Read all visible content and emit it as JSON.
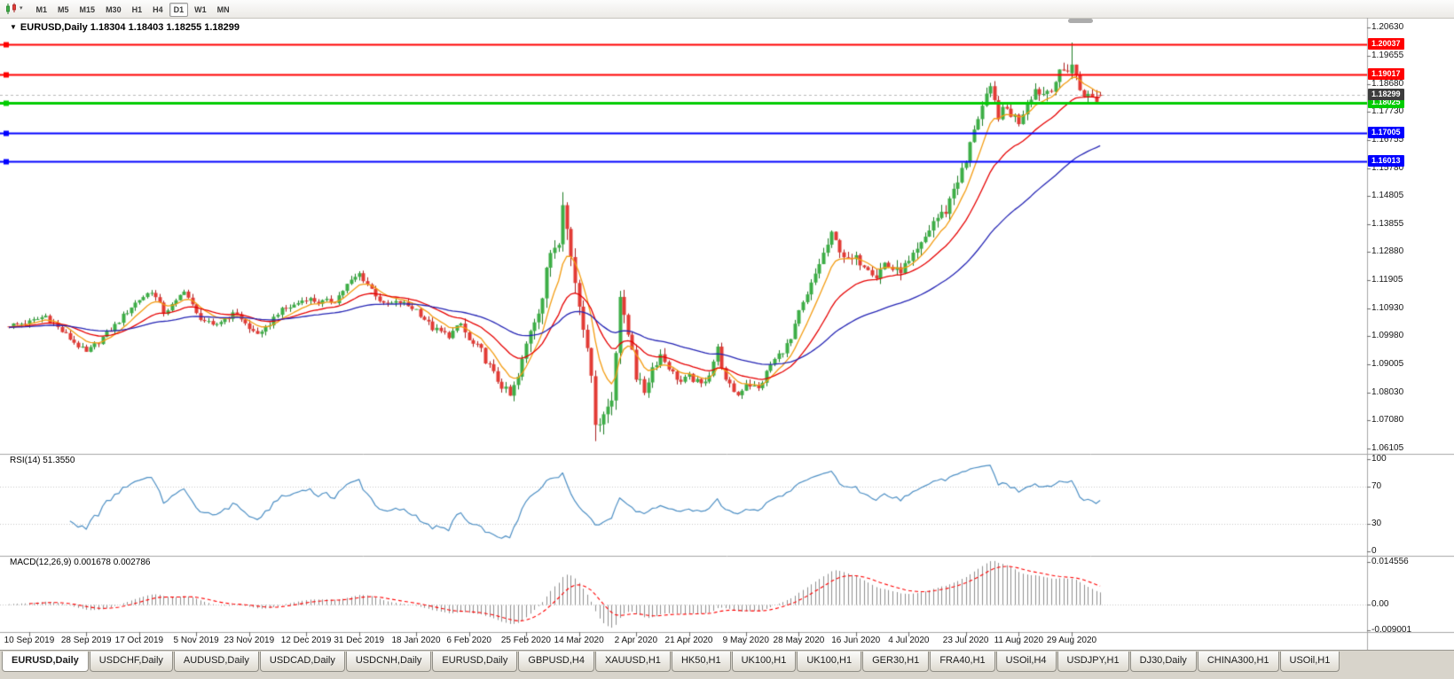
{
  "toolbar": {
    "caret": "▾",
    "timeframes": [
      "M1",
      "M5",
      "M15",
      "M30",
      "H1",
      "H4",
      "D1",
      "W1",
      "MN"
    ],
    "active_timeframe": "D1"
  },
  "tabs": [
    "EURUSD,Daily",
    "USDCHF,Daily",
    "AUDUSD,Daily",
    "USDCAD,Daily",
    "USDCNH,Daily",
    "EURUSD,Daily",
    "GBPUSD,H4",
    "XAUUSD,H1",
    "HK50,H1",
    "UK100,H1",
    "UK100,H1",
    "GER30,H1",
    "FRA40,H1",
    "USOil,H4",
    "USDJPY,H1",
    "DJ30,Daily",
    "CHINA300,H1",
    "USOil,H1"
  ],
  "active_tab_index": 0,
  "chart_data": {
    "type": "candlestick",
    "title_marker": "▼",
    "title_symbol": "EURUSD,Daily",
    "title_ohlc": "1.18304 1.18403 1.18255 1.18299",
    "symbol": "EURUSD",
    "timeframe": "Daily",
    "ohlc_display": {
      "open": "1.18304",
      "high": "1.18403",
      "low": "1.18255",
      "close": "1.18299"
    },
    "price_axis": {
      "ticks": [
        "1.20630",
        "1.19655",
        "1.18680",
        "1.17730",
        "1.16755",
        "1.15780",
        "1.14805",
        "1.13855",
        "1.12880",
        "1.11905",
        "1.10930",
        "1.09980",
        "1.09005",
        "1.08030",
        "1.07080",
        "1.06105"
      ]
    },
    "horizontal_lines": [
      {
        "price": "1.20037",
        "color": "#FF0000",
        "width": 2
      },
      {
        "price": "1.19017",
        "color": "#FF0000",
        "width": 2
      },
      {
        "price": "1.18025",
        "color": "#00CC00",
        "width": 3
      },
      {
        "price": "1.17005",
        "color": "#0000FF",
        "width": 2
      },
      {
        "price": "1.16013",
        "color": "#0000FF",
        "width": 2
      }
    ],
    "current_price": {
      "text": "1.18299",
      "badge_color": "#3C3C3C",
      "line_color": "#B8B8B8"
    },
    "date_labels": [
      {
        "text": "10 Sep 2019",
        "idx": 5
      },
      {
        "text": "28 Sep 2019",
        "idx": 19
      },
      {
        "text": "17 Oct 2019",
        "idx": 32
      },
      {
        "text": "5 Nov 2019",
        "idx": 46
      },
      {
        "text": "23 Nov 2019",
        "idx": 59
      },
      {
        "text": "12 Dec 2019",
        "idx": 73
      },
      {
        "text": "31 Dec 2019",
        "idx": 86
      },
      {
        "text": "18 Jan 2020",
        "idx": 100
      },
      {
        "text": "6 Feb 2020",
        "idx": 113
      },
      {
        "text": "25 Feb 2020",
        "idx": 127
      },
      {
        "text": "14 Mar 2020",
        "idx": 140
      },
      {
        "text": "2 Apr 2020",
        "idx": 154
      },
      {
        "text": "21 Apr 2020",
        "idx": 167
      },
      {
        "text": "9 May 2020",
        "idx": 181
      },
      {
        "text": "28 May 2020",
        "idx": 194
      },
      {
        "text": "16 Jun 2020",
        "idx": 208
      },
      {
        "text": "4 Jul 2020",
        "idx": 221
      },
      {
        "text": "23 Jul 2020",
        "idx": 235
      },
      {
        "text": "11 Aug 2020",
        "idx": 248
      },
      {
        "text": "29 Aug 2020",
        "idx": 261
      }
    ],
    "candles": {
      "count": 269,
      "up_color": "#3DAE46",
      "up_edge": "#1E7D24",
      "down_color": "#E23B35",
      "down_edge": "#A81E1E",
      "waypoints": [
        [
          0,
          1.1035
        ],
        [
          5,
          1.1046
        ],
        [
          9,
          1.1068
        ],
        [
          13,
          1.1014
        ],
        [
          19,
          1.094
        ],
        [
          22,
          1.098
        ],
        [
          26,
          1.1035
        ],
        [
          30,
          1.11
        ],
        [
          32,
          1.1125
        ],
        [
          35,
          1.1155
        ],
        [
          38,
          1.108
        ],
        [
          41,
          1.1115
        ],
        [
          43,
          1.116
        ],
        [
          46,
          1.1073
        ],
        [
          50,
          1.103
        ],
        [
          53,
          1.106
        ],
        [
          56,
          1.1078
        ],
        [
          59,
          1.1021
        ],
        [
          62,
          1.1005
        ],
        [
          66,
          1.108
        ],
        [
          70,
          1.1105
        ],
        [
          73,
          1.113
        ],
        [
          76,
          1.1115
        ],
        [
          80,
          1.112
        ],
        [
          83,
          1.1175
        ],
        [
          86,
          1.1213
        ],
        [
          89,
          1.116
        ],
        [
          92,
          1.1105
        ],
        [
          96,
          1.1115
        ],
        [
          100,
          1.109
        ],
        [
          104,
          1.1025
        ],
        [
          108,
          1.1
        ],
        [
          111,
          1.104
        ],
        [
          113,
          1.098
        ],
        [
          116,
          1.0945
        ],
        [
          119,
          1.0865
        ],
        [
          123,
          1.079
        ],
        [
          125,
          1.0855
        ],
        [
          128,
          1.1027
        ],
        [
          131,
          1.1135
        ],
        [
          133,
          1.129
        ],
        [
          135,
          1.134
        ],
        [
          136,
          1.145
        ],
        [
          138,
          1.127
        ],
        [
          140,
          1.1109
        ],
        [
          142,
          1.098
        ],
        [
          144,
          1.0692
        ],
        [
          146,
          1.0727
        ],
        [
          148,
          1.0785
        ],
        [
          150,
          1.114
        ],
        [
          151,
          1.1048
        ],
        [
          153,
          1.0961
        ],
        [
          154,
          1.0859
        ],
        [
          156,
          1.0808
        ],
        [
          158,
          1.089
        ],
        [
          160,
          1.0935
        ],
        [
          163,
          1.087
        ],
        [
          165,
          1.084
        ],
        [
          167,
          1.0858
        ],
        [
          170,
          1.083
        ],
        [
          172,
          1.087
        ],
        [
          174,
          1.0955
        ],
        [
          176,
          1.084
        ],
        [
          179,
          1.0795
        ],
        [
          181,
          1.0838
        ],
        [
          184,
          1.0815
        ],
        [
          187,
          1.09
        ],
        [
          190,
          1.095
        ],
        [
          192,
          1.0985
        ],
        [
          194,
          1.1077
        ],
        [
          196,
          1.1135
        ],
        [
          199,
          1.125
        ],
        [
          202,
          1.1345
        ],
        [
          204,
          1.13
        ],
        [
          206,
          1.1255
        ],
        [
          208,
          1.1264
        ],
        [
          211,
          1.124
        ],
        [
          213,
          1.1205
        ],
        [
          215,
          1.125
        ],
        [
          218,
          1.122
        ],
        [
          221,
          1.1248
        ],
        [
          224,
          1.131
        ],
        [
          227,
          1.1395
        ],
        [
          230,
          1.143
        ],
        [
          232,
          1.151
        ],
        [
          235,
          1.1596
        ],
        [
          237,
          1.172
        ],
        [
          239,
          1.179
        ],
        [
          241,
          1.1845
        ],
        [
          243,
          1.1762
        ],
        [
          245,
          1.178
        ],
        [
          248,
          1.174
        ],
        [
          250,
          1.181
        ],
        [
          252,
          1.185
        ],
        [
          254,
          1.1835
        ],
        [
          256,
          1.186
        ],
        [
          258,
          1.19
        ],
        [
          261,
          1.1935
        ],
        [
          263,
          1.185
        ],
        [
          265,
          1.1825
        ],
        [
          267,
          1.1815
        ],
        [
          268,
          1.18299
        ]
      ],
      "volatility": [
        [
          0,
          112,
          0.0022
        ],
        [
          112,
          128,
          0.0034
        ],
        [
          128,
          152,
          0.0062
        ],
        [
          152,
          162,
          0.0038
        ],
        [
          162,
          194,
          0.0026
        ],
        [
          194,
          216,
          0.0036
        ],
        [
          216,
          240,
          0.004
        ],
        [
          240,
          269,
          0.0042
        ]
      ],
      "overrides": {
        "136": [
          1.1315,
          1.1495,
          1.129,
          1.145
        ],
        "137": [
          1.145,
          1.146,
          1.133,
          1.1368
        ],
        "144": [
          1.086,
          1.088,
          1.0636,
          1.0692
        ],
        "261": [
          1.1905,
          1.2011,
          1.1885,
          1.1935
        ],
        "268": [
          1.18304,
          1.18403,
          1.18255,
          1.18299
        ]
      }
    },
    "moving_averages": [
      {
        "period": 8,
        "color": "#F39C12"
      },
      {
        "period": 21,
        "color": "#E60000"
      },
      {
        "period": 55,
        "color": "#2424B4"
      }
    ],
    "rsi": {
      "label": "RSI(14)",
      "value_text": "51.3550",
      "period": 14,
      "color": "#4D8FC4",
      "axis_ticks": [
        "100",
        "70",
        "30",
        "0"
      ],
      "levels": [
        70,
        30
      ]
    },
    "macd": {
      "label": "MACD(12,26,9)",
      "values_text": "0.001678 0.002786",
      "fast": 12,
      "slow": 26,
      "signal": 9,
      "hist_color": "#8F8F8F",
      "signal_color": "#FF0000",
      "axis_ticks": [
        {
          "text": "0.014556",
          "value": 0.014556
        },
        {
          "text": "0.00",
          "value": 0
        },
        {
          "text": "-0.009001",
          "value": -0.009001
        }
      ]
    }
  }
}
